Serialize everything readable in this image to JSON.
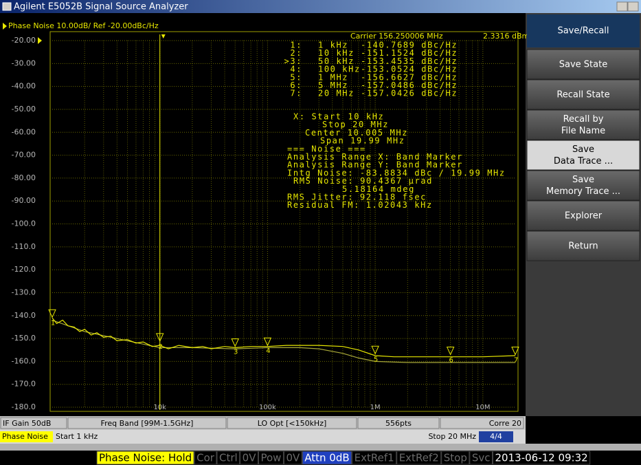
{
  "title_bar": {
    "title": "Agilent E5052B Signal Source Analyzer"
  },
  "chart_data": {
    "type": "line",
    "title": "Phase Noise 10.00dB/ Ref -20.00dBc/Hz",
    "subtitle": "Carrier 156.250006 MHz",
    "carrier_power": "2.3316 dBm",
    "log_x": true,
    "grid": true,
    "xlim": [
      1000,
      20000000
    ],
    "xticks": [
      {
        "value": 10000,
        "label": "10k"
      },
      {
        "value": 100000,
        "label": "100k"
      },
      {
        "value": 1000000,
        "label": "1M"
      },
      {
        "value": 10000000,
        "label": "10M"
      }
    ],
    "ylim": [
      -20,
      -180
    ],
    "yticks": [
      {
        "value": -20,
        "label": "-20.00"
      },
      {
        "value": -30,
        "label": "-30.00"
      },
      {
        "value": -40,
        "label": "-40.00"
      },
      {
        "value": -50,
        "label": "-50.00"
      },
      {
        "value": -60,
        "label": "-60.00"
      },
      {
        "value": -70,
        "label": "-70.00"
      },
      {
        "value": -80,
        "label": "-80.00"
      },
      {
        "value": -90,
        "label": "-90.00"
      },
      {
        "value": -100,
        "label": "-100.0"
      },
      {
        "value": -110,
        "label": "-110.0"
      },
      {
        "value": -120,
        "label": "-120.0"
      },
      {
        "value": -130,
        "label": "-130.0"
      },
      {
        "value": -140,
        "label": "-140.0"
      },
      {
        "value": -150,
        "label": "-150.0"
      },
      {
        "value": -160,
        "label": "-160.0"
      },
      {
        "value": -170,
        "label": "-170.0"
      },
      {
        "value": -180,
        "label": "-180.0"
      }
    ],
    "series": [
      {
        "color": "#e8e800",
        "x": [
          1000,
          1100,
          1250,
          1400,
          1600,
          1800,
          2000,
          2300,
          2600,
          3000,
          3500,
          4000,
          5000,
          6000,
          7000,
          8500,
          10000,
          12000,
          15000,
          20000,
          25000,
          30000,
          40000,
          50000,
          70000,
          100000,
          150000,
          200000,
          300000,
          500000,
          700000,
          1000000,
          1500000,
          2000000,
          3000000,
          5000000,
          10000000,
          20000000
        ],
        "values": [
          -141,
          -143.5,
          -142,
          -144.5,
          -145,
          -147,
          -146,
          -148.5,
          -147.5,
          -149.5,
          -149,
          -151,
          -150.5,
          -152,
          -151.5,
          -153.5,
          -153,
          -154.5,
          -153,
          -154,
          -153.5,
          -154.5,
          -153.5,
          -154,
          -153.5,
          -153.5,
          -153,
          -153,
          -153,
          -153.5,
          -155,
          -157.5,
          -158,
          -158,
          -158,
          -158,
          -158,
          -157.5
        ]
      },
      {
        "color": "#a8a838",
        "x": [
          1000,
          2000,
          5000,
          10000,
          20000,
          50000,
          100000,
          200000,
          300000,
          500000,
          700000,
          1000000,
          2000000,
          5000000,
          10000000,
          20000000
        ],
        "values": [
          -142,
          -147,
          -151,
          -154,
          -154,
          -154.5,
          -154,
          -154,
          -154.5,
          -156.5,
          -158.5,
          -160,
          -160.5,
          -160.5,
          -160.5,
          -160.5
        ]
      }
    ],
    "markers": {
      "color": "#e8e800",
      "labels": [
        "1",
        "2",
        "3",
        "4",
        "5",
        "6",
        "7"
      ],
      "x": [
        1000,
        10000,
        50000,
        100000,
        1000000,
        5000000,
        20000000
      ],
      "values": [
        -140.7689,
        -151.1524,
        -153.4535,
        -153.0524,
        -156.6627,
        -157.0486,
        -157.0426
      ]
    }
  },
  "readout": {
    "markers": [
      {
        "id": "1:",
        "freq": "1 kHz",
        "value": "-140.7689 dBc/Hz"
      },
      {
        "id": "2:",
        "freq": "10 kHz",
        "value": "-151.1524 dBc/Hz"
      },
      {
        "id": ">3:",
        "freq": "50 kHz",
        "value": "-153.4535 dBc/Hz"
      },
      {
        "id": "4:",
        "freq": "100 kHz",
        "value": "-153.0524 dBc/Hz"
      },
      {
        "id": "5:",
        "freq": "1 MHz",
        "value": "-156.6627 dBc/Hz"
      },
      {
        "id": "6:",
        "freq": "5 MHz",
        "value": "-157.0486 dBc/Hz"
      },
      {
        "id": "7:",
        "freq": "20 MHz",
        "value": "-157.0426 dBc/Hz"
      }
    ],
    "lines": [
      "X: Start 10 kHz",
      "Stop 20 MHz",
      "Center 10.005 MHz",
      "Span 19.99 MHz",
      "=== Noise ===",
      "Analysis Range X: Band Marker",
      "Analysis Range Y: Band Marker",
      "Intg Noise: -83.8834 dBc / 19.99 MHz",
      "RMS Noise: 90.4367 µrad",
      "5.18164 mdeg",
      "RMS Jitter: 92.118 fsec",
      "Residual FM: 1.02043 kHz"
    ]
  },
  "softkeys": {
    "header": "Save/Recall",
    "selected": 3,
    "items": [
      [
        "Save State"
      ],
      [
        "Recall State"
      ],
      [
        "Recall by",
        "File Name"
      ],
      [
        "Save",
        "Data Trace ..."
      ],
      [
        "Save",
        "Memory Trace ..."
      ],
      [
        "Explorer"
      ],
      [
        "Return"
      ]
    ]
  },
  "status": {
    "row1": [
      "IF Gain 50dB",
      "Freq Band [99M-1.5GHz]",
      "LO Opt [<150kHz]",
      "556pts",
      "Corre 20"
    ],
    "row2": {
      "mode": "Phase Noise",
      "start": "Start 1 kHz",
      "stop": "Stop 20 MHz",
      "page": "4/4"
    }
  },
  "footer": [
    {
      "text": "Phase Noise: Hold",
      "style": "yellow"
    },
    {
      "text": "Cor",
      "style": "dim"
    },
    {
      "text": "Ctrl",
      "style": "dim"
    },
    {
      "text": "0V",
      "style": "dim"
    },
    {
      "text": "Pow",
      "style": "dim"
    },
    {
      "text": "0V",
      "style": "dim"
    },
    {
      "text": "Attn 0dB",
      "style": "blue"
    },
    {
      "text": "ExtRef1",
      "style": "dim"
    },
    {
      "text": "ExtRef2",
      "style": "dim"
    },
    {
      "text": "Stop",
      "style": "dim"
    },
    {
      "text": "Svc",
      "style": "dim"
    },
    {
      "text": "2013-06-12 09:32",
      "style": "white"
    }
  ]
}
